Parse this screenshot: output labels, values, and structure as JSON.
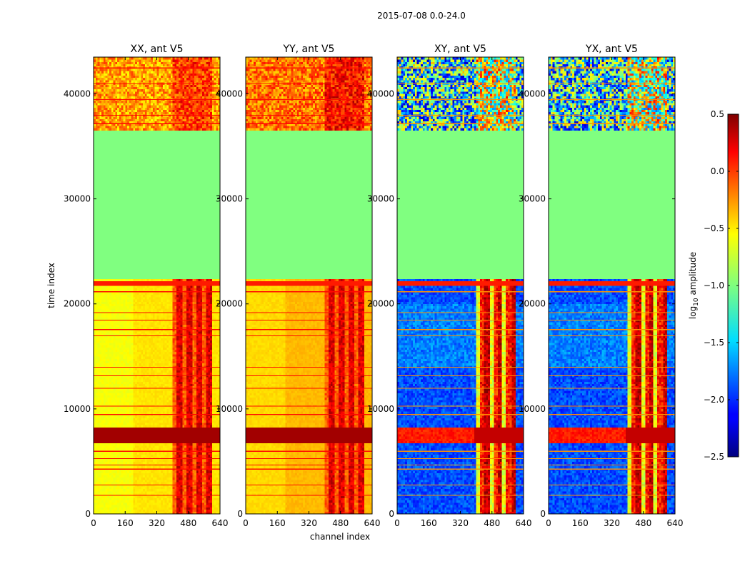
{
  "chart_data": {
    "type": "heatmap",
    "title": "2015-07-08 0.0-24.0",
    "xlabel": "channel index",
    "ylabel": "time index",
    "xlim": [
      0,
      640
    ],
    "ylim": [
      0,
      43500
    ],
    "xticks": [
      "0",
      "160",
      "320",
      "480",
      "640"
    ],
    "yticks": [
      "0",
      "10000",
      "20000",
      "30000",
      "40000"
    ],
    "colormap": "jet",
    "colorbar": {
      "label": "log10 amplitude",
      "label_base": "log",
      "label_sub": "10",
      "label_rest": " amplitude",
      "range": [
        -2.5,
        0.5
      ],
      "ticks": [
        "0.5",
        "0.0",
        "−0.5",
        "−1.0",
        "−1.5",
        "−2.0",
        "−2.5"
      ],
      "tick_values": [
        0.5,
        0.0,
        -0.5,
        -1.0,
        -1.5,
        -2.0,
        -2.5
      ]
    },
    "panels": [
      {
        "title": "XX, ant V5",
        "kind": "auto",
        "base": -0.55
      },
      {
        "title": "YY, ant V5",
        "kind": "auto",
        "base": -0.42
      },
      {
        "title": "XY, ant V5",
        "kind": "cross",
        "base": -1.9
      },
      {
        "title": "YX, ant V5",
        "kind": "cross",
        "base": -1.9
      }
    ],
    "flagged_time_range": [
      22500,
      36500
    ],
    "flagged_value": -1.0,
    "hot_channel_range": [
      400,
      600
    ]
  }
}
